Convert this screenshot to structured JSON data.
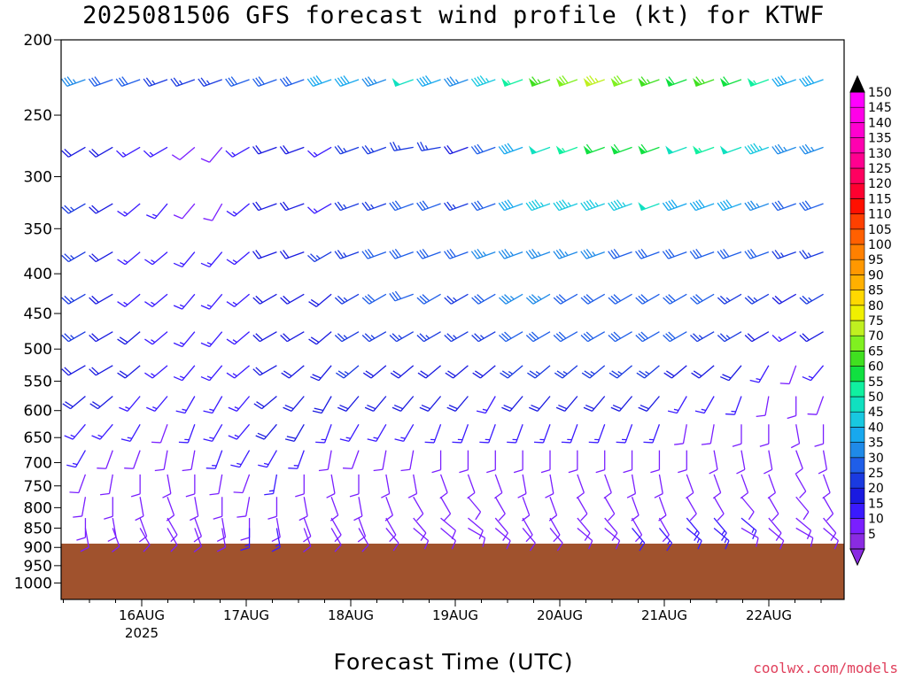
{
  "chart_data": {
    "type": "wind-barb-profile",
    "title": "2025081506 GFS forecast wind profile (kt) for KTWF",
    "xlabel": "Forecast Time (UTC)",
    "x_ticks": [
      "16AUG",
      "17AUG",
      "18AUG",
      "19AUG",
      "20AUG",
      "21AUG",
      "22AUG"
    ],
    "x_year": "2025",
    "y_axis": {
      "scale": "log",
      "ylim": [
        1050,
        200
      ],
      "ticks": [
        200,
        250,
        300,
        350,
        400,
        450,
        500,
        550,
        600,
        650,
        700,
        750,
        800,
        850,
        900,
        950,
        1000
      ]
    },
    "levels_hPa": [
      225,
      275,
      325,
      375,
      425,
      475,
      525,
      575,
      625,
      675,
      725,
      775,
      825,
      850
    ],
    "surface_pressure_hPa": 890,
    "terrain_color": "#a0522d",
    "speed_range_kt": [
      5,
      150
    ],
    "colorbar": {
      "levels": [
        5,
        10,
        15,
        20,
        25,
        30,
        35,
        40,
        45,
        50,
        55,
        60,
        65,
        70,
        75,
        80,
        85,
        90,
        95,
        100,
        105,
        110,
        115,
        120,
        125,
        130,
        135,
        140,
        145,
        150
      ],
      "colors": [
        "#8a2be2",
        "#7a1fff",
        "#3a1aff",
        "#1a1ae0",
        "#1a3ae0",
        "#1f5ee8",
        "#1f8ae8",
        "#18a8ee",
        "#18c8e0",
        "#10e0c0",
        "#10f0a0",
        "#10e040",
        "#40e020",
        "#80f020",
        "#c0f020",
        "#f0f000",
        "#ffd800",
        "#ffb000",
        "#ff9800",
        "#ff8000",
        "#ff6000",
        "#ff4000",
        "#ff1000",
        "#ff0030",
        "#ff0060",
        "#ff0090",
        "#ff00b0",
        "#ff00d0",
        "#ff00e8",
        "#ff00ff"
      ]
    },
    "speed_by_level_kt": [
      [
        35,
        30,
        30,
        25,
        25,
        25,
        30,
        30,
        30,
        40,
        40,
        35,
        50,
        40,
        35,
        45,
        55,
        65,
        70,
        75,
        70,
        65,
        60,
        65,
        60,
        55,
        40,
        40
      ],
      [
        20,
        20,
        15,
        15,
        10,
        10,
        15,
        20,
        20,
        15,
        25,
        25,
        25,
        25,
        20,
        30,
        40,
        50,
        55,
        60,
        60,
        60,
        50,
        55,
        50,
        45,
        35,
        35
      ],
      [
        25,
        20,
        15,
        15,
        10,
        10,
        15,
        20,
        20,
        15,
        25,
        25,
        30,
        30,
        25,
        30,
        40,
        45,
        45,
        45,
        45,
        50,
        40,
        40,
        40,
        35,
        30,
        30
      ],
      [
        25,
        20,
        15,
        15,
        15,
        15,
        15,
        20,
        20,
        25,
        25,
        30,
        30,
        30,
        30,
        35,
        35,
        35,
        35,
        35,
        30,
        30,
        30,
        30,
        30,
        30,
        25,
        25
      ],
      [
        25,
        20,
        15,
        15,
        15,
        15,
        15,
        20,
        20,
        20,
        25,
        30,
        30,
        30,
        25,
        30,
        35,
        35,
        30,
        30,
        30,
        30,
        30,
        30,
        25,
        25,
        20,
        25
      ],
      [
        25,
        20,
        20,
        15,
        15,
        15,
        15,
        20,
        20,
        20,
        25,
        25,
        25,
        25,
        25,
        25,
        30,
        30,
        30,
        30,
        30,
        30,
        30,
        25,
        25,
        20,
        15,
        20
      ],
      [
        20,
        20,
        20,
        15,
        15,
        15,
        15,
        20,
        20,
        20,
        25,
        20,
        20,
        20,
        20,
        20,
        25,
        25,
        25,
        25,
        25,
        25,
        20,
        20,
        20,
        15,
        10,
        15
      ],
      [
        20,
        20,
        15,
        15,
        15,
        15,
        15,
        20,
        20,
        20,
        20,
        20,
        20,
        20,
        20,
        15,
        20,
        20,
        20,
        20,
        20,
        20,
        15,
        15,
        15,
        10,
        10,
        10
      ],
      [
        15,
        15,
        15,
        10,
        15,
        15,
        15,
        20,
        20,
        15,
        15,
        15,
        15,
        15,
        15,
        15,
        15,
        15,
        15,
        15,
        15,
        15,
        10,
        10,
        10,
        10,
        10,
        10
      ],
      [
        15,
        10,
        10,
        10,
        10,
        15,
        15,
        15,
        15,
        10,
        10,
        10,
        10,
        10,
        10,
        10,
        10,
        10,
        10,
        10,
        10,
        10,
        10,
        10,
        10,
        10,
        10,
        10
      ],
      [
        10,
        10,
        10,
        10,
        10,
        10,
        10,
        15,
        10,
        10,
        10,
        10,
        10,
        10,
        10,
        10,
        10,
        10,
        10,
        10,
        10,
        10,
        10,
        10,
        10,
        10,
        10,
        10
      ],
      [
        10,
        10,
        10,
        10,
        10,
        10,
        10,
        10,
        10,
        10,
        10,
        10,
        10,
        10,
        10,
        10,
        10,
        10,
        10,
        10,
        10,
        10,
        10,
        10,
        10,
        10,
        10,
        10
      ],
      [
        10,
        10,
        10,
        10,
        10,
        10,
        10,
        10,
        10,
        10,
        10,
        10,
        10,
        10,
        10,
        10,
        10,
        10,
        10,
        10,
        10,
        10,
        15,
        15,
        15,
        10,
        10,
        10
      ],
      [
        10,
        10,
        10,
        10,
        10,
        10,
        15,
        15,
        10,
        10,
        10,
        10,
        10,
        10,
        10,
        10,
        10,
        10,
        10,
        10,
        15,
        15,
        15,
        15,
        10,
        10,
        10,
        10
      ]
    ],
    "direction_by_level_deg": [
      [
        250,
        250,
        250,
        250,
        250,
        250,
        250,
        250,
        250,
        250,
        250,
        250,
        250,
        250,
        250,
        250,
        250,
        250,
        250,
        250,
        250,
        250,
        250,
        250,
        250,
        250,
        250,
        250
      ],
      [
        240,
        240,
        240,
        240,
        230,
        220,
        240,
        250,
        250,
        240,
        250,
        250,
        260,
        260,
        250,
        250,
        250,
        250,
        250,
        250,
        250,
        250,
        250,
        250,
        250,
        250,
        250,
        250
      ],
      [
        240,
        240,
        230,
        220,
        220,
        210,
        230,
        250,
        250,
        240,
        250,
        250,
        250,
        250,
        250,
        250,
        250,
        250,
        250,
        250,
        250,
        250,
        250,
        250,
        250,
        250,
        250,
        250
      ],
      [
        240,
        240,
        230,
        230,
        220,
        220,
        230,
        250,
        250,
        240,
        250,
        250,
        250,
        250,
        250,
        250,
        250,
        250,
        250,
        250,
        250,
        250,
        250,
        250,
        250,
        250,
        250,
        250
      ],
      [
        240,
        240,
        230,
        230,
        220,
        220,
        230,
        240,
        240,
        230,
        240,
        240,
        250,
        240,
        240,
        240,
        240,
        240,
        240,
        240,
        240,
        240,
        240,
        240,
        240,
        240,
        240,
        240
      ],
      [
        240,
        240,
        230,
        230,
        220,
        220,
        230,
        240,
        240,
        230,
        240,
        240,
        240,
        240,
        240,
        240,
        240,
        240,
        240,
        240,
        240,
        240,
        240,
        240,
        240,
        240,
        240,
        240
      ],
      [
        240,
        240,
        230,
        230,
        220,
        220,
        230,
        240,
        230,
        220,
        230,
        230,
        230,
        230,
        230,
        230,
        230,
        230,
        230,
        230,
        230,
        230,
        230,
        230,
        220,
        210,
        200,
        220
      ],
      [
        230,
        230,
        220,
        220,
        210,
        210,
        220,
        230,
        220,
        210,
        220,
        220,
        220,
        220,
        220,
        210,
        220,
        220,
        220,
        220,
        220,
        220,
        210,
        210,
        200,
        190,
        180,
        200
      ],
      [
        220,
        220,
        210,
        200,
        200,
        210,
        220,
        220,
        210,
        200,
        210,
        210,
        210,
        200,
        200,
        200,
        200,
        200,
        200,
        200,
        200,
        200,
        190,
        190,
        180,
        180,
        170,
        180
      ],
      [
        210,
        200,
        200,
        190,
        190,
        200,
        210,
        210,
        200,
        190,
        200,
        190,
        190,
        180,
        180,
        180,
        180,
        180,
        180,
        180,
        180,
        180,
        180,
        170,
        170,
        170,
        160,
        170
      ],
      [
        200,
        190,
        180,
        170,
        180,
        190,
        200,
        190,
        180,
        170,
        180,
        170,
        170,
        160,
        160,
        160,
        170,
        170,
        160,
        160,
        170,
        170,
        160,
        160,
        160,
        160,
        150,
        160
      ],
      [
        190,
        180,
        170,
        160,
        170,
        180,
        190,
        180,
        170,
        160,
        170,
        160,
        150,
        150,
        140,
        150,
        160,
        160,
        150,
        150,
        160,
        160,
        150,
        150,
        140,
        150,
        140,
        150
      ],
      [
        180,
        170,
        160,
        150,
        160,
        170,
        180,
        170,
        160,
        150,
        160,
        150,
        140,
        130,
        130,
        140,
        150,
        150,
        140,
        140,
        150,
        150,
        140,
        140,
        130,
        140,
        130,
        140
      ],
      [
        170,
        160,
        150,
        150,
        160,
        170,
        180,
        170,
        160,
        150,
        150,
        140,
        130,
        130,
        120,
        130,
        140,
        140,
        130,
        130,
        140,
        140,
        130,
        130,
        120,
        130,
        120,
        130
      ]
    ]
  },
  "footer": {
    "credit": "coolwx.com/models"
  }
}
